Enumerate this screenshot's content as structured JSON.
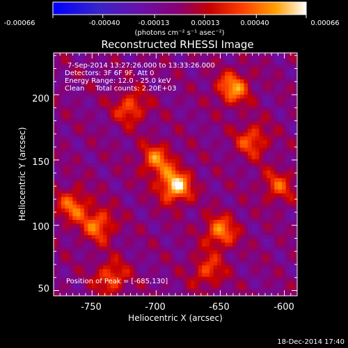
{
  "chart_data": {
    "type": "heatmap",
    "title": "Reconstructed RHESSI Image",
    "xlabel": "Heliocentric X (arcsec)",
    "ylabel": "Heliocentric Y (arcsec)",
    "xlim": [
      -780,
      -590
    ],
    "ylim": [
      46,
      232
    ],
    "xticks": [
      -750,
      -700,
      -650,
      -600
    ],
    "yticks": [
      50,
      100,
      150,
      200
    ],
    "colorbar": {
      "tick_labels": [
        "-0.00066",
        "-0.00040",
        "-0.00013",
        "0.00013",
        "0.00040",
        "0.00066"
      ],
      "range": [
        -0.00066,
        0.00066
      ],
      "unit_label": "(photons cm⁻² s⁻¹ asec⁻²)"
    },
    "info": {
      "line1": "7-Sep-2014 13:27:26.000 to 13:33:26.000",
      "line2": "Detectors: 3F 6F 9F, Att 0",
      "line3": "Energy Range: 12.0 - 25.0 keV",
      "line4": "Clean     Total counts: 2.20E+03"
    },
    "peak_label": "Position of Peak = [-685,130]",
    "peak": [
      -685,
      130
    ],
    "footer_timestamp": "18-Dec-2014 17:40",
    "sources": [
      {
        "x": -685,
        "y": 130,
        "amplitude": 0.00066
      },
      {
        "x": -700,
        "y": 150,
        "amplitude": 0.00045
      },
      {
        "x": -720,
        "y": 190,
        "amplitude": 0.0004
      },
      {
        "x": -640,
        "y": 205,
        "amplitude": 0.00052
      },
      {
        "x": -625,
        "y": 165,
        "amplitude": 0.0004
      },
      {
        "x": -605,
        "y": 130,
        "amplitude": 0.00035
      },
      {
        "x": -765,
        "y": 115,
        "amplitude": 0.00042
      },
      {
        "x": -745,
        "y": 100,
        "amplitude": 0.00045
      },
      {
        "x": -735,
        "y": 60,
        "amplitude": 0.0004
      },
      {
        "x": -650,
        "y": 95,
        "amplitude": 0.00048
      },
      {
        "x": -660,
        "y": 65,
        "amplitude": 0.00035
      }
    ]
  }
}
